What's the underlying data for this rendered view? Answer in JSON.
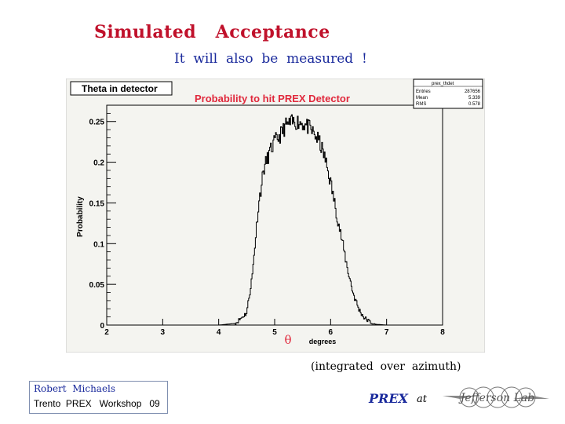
{
  "slide": {
    "title": "Simulated   Acceptance",
    "subtitle": "It  will  also  be  measured  !",
    "note": "(integrated  over  azimuth)"
  },
  "footer": {
    "author": "Robert  Michaels",
    "event": "Trento  PREX   Workshop   09",
    "prex_label": "PREX",
    "at_label": "at",
    "logo_text": "Jefferson Lab"
  },
  "colors": {
    "title": "#c0112b",
    "subtitle": "#1a2a9c",
    "panel_bg": "#f4f4f0",
    "histogram": "#000000",
    "plot_title": "#e0283c"
  },
  "chart_data": {
    "type": "line",
    "box_title": "Theta in detector",
    "title": "Probability to hit  PREX  Detector",
    "xlabel": "degrees",
    "xlabel_symbol": "θ",
    "ylabel": "Probability",
    "xlim": [
      2,
      8
    ],
    "ylim": [
      0,
      0.27
    ],
    "xticks": [
      "2",
      "3",
      "4",
      "5",
      "6",
      "7",
      "8"
    ],
    "yticks": [
      {
        "value": 0,
        "label": "0"
      },
      {
        "value": 0.05,
        "label": "0.05"
      },
      {
        "value": 0.1,
        "label": "0.1"
      },
      {
        "value": 0.15,
        "label": "0.15"
      },
      {
        "value": 0.2,
        "label": "0.2"
      },
      {
        "value": 0.25,
        "label": "0.25"
      }
    ],
    "stats": {
      "name": "prex_thdet",
      "rows": [
        {
          "label": "Entries",
          "value": "287656"
        },
        {
          "label": "Mean",
          "value": "5.339"
        },
        {
          "label": "RMS",
          "value": "0.578"
        }
      ]
    },
    "x": [
      4.0,
      4.3,
      4.5,
      4.6,
      4.7,
      4.8,
      4.9,
      5.0,
      5.1,
      5.2,
      5.3,
      5.4,
      5.5,
      5.6,
      5.7,
      5.8,
      5.9,
      6.0,
      6.1,
      6.2,
      6.3,
      6.4,
      6.5,
      6.6,
      6.7,
      6.8,
      7.0
    ],
    "values": [
      0.0,
      0.002,
      0.015,
      0.06,
      0.14,
      0.19,
      0.21,
      0.225,
      0.233,
      0.245,
      0.248,
      0.25,
      0.248,
      0.243,
      0.235,
      0.225,
      0.205,
      0.175,
      0.14,
      0.105,
      0.07,
      0.04,
      0.02,
      0.009,
      0.004,
      0.001,
      0.0
    ]
  }
}
